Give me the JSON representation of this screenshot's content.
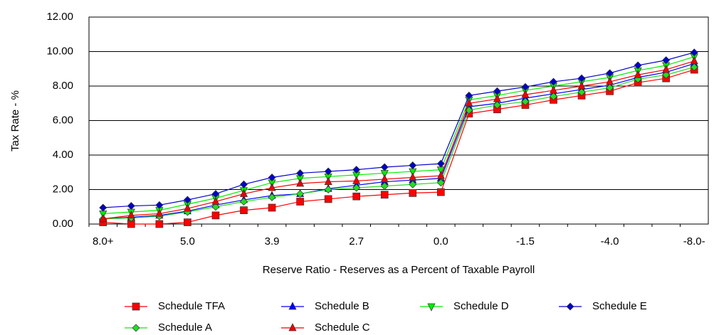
{
  "chart_data": {
    "type": "line",
    "x_label": "Reserve Ratio - Reserves as a Percent of Taxable Payroll",
    "y_label": "Tax Rate - %",
    "categories": [
      "8.0+",
      null,
      null,
      "5.0",
      null,
      null,
      "3.9",
      null,
      null,
      "2.7",
      null,
      null,
      "0.0",
      null,
      null,
      "-1.5",
      null,
      null,
      "-4.0",
      null,
      null,
      "-8.0-"
    ],
    "ylim": [
      0,
      12
    ],
    "yticks": [
      {
        "value": 0,
        "label": "0.00"
      },
      {
        "value": 2,
        "label": "2.00"
      },
      {
        "value": 4,
        "label": "4.00"
      },
      {
        "value": 6,
        "label": "6.00"
      },
      {
        "value": 8,
        "label": "8.00"
      },
      {
        "value": 10,
        "label": "10.00"
      },
      {
        "value": 12,
        "label": "12.00"
      }
    ],
    "grid": true,
    "legend": "bottom",
    "series": [
      {
        "name": "Schedule TFA",
        "color": "#ff0000",
        "marker": "square",
        "values": [
          0.1,
          0,
          0,
          0.1,
          0.5,
          0.8,
          0.95,
          1.3,
          1.45,
          1.6,
          1.7,
          1.8,
          1.85,
          6.4,
          6.65,
          6.9,
          7.2,
          7.45,
          7.7,
          8.2,
          8.45,
          8.95
        ]
      },
      {
        "name": "Schedule B",
        "color": "#0000ff",
        "marker": "triangle-up",
        "values": [
          0.3,
          0.4,
          0.5,
          0.75,
          1.1,
          1.4,
          1.65,
          1.75,
          2.05,
          2.25,
          2.45,
          2.55,
          2.65,
          6.8,
          7.0,
          7.3,
          7.55,
          7.8,
          8.05,
          8.5,
          8.8,
          9.3
        ]
      },
      {
        "name": "Schedule D",
        "color": "#00ee00",
        "marker": "triangle-down",
        "values": [
          0.6,
          0.7,
          0.8,
          1.15,
          1.5,
          1.95,
          2.4,
          2.65,
          2.75,
          2.85,
          2.95,
          3.05,
          3.15,
          7.2,
          7.45,
          7.75,
          8.0,
          8.25,
          8.5,
          8.9,
          9.2,
          9.7
        ]
      },
      {
        "name": "Schedule E",
        "color": "#0000cc",
        "marker": "diamond",
        "values": [
          0.95,
          1.05,
          1.1,
          1.4,
          1.75,
          2.3,
          2.7,
          2.95,
          3.05,
          3.15,
          3.3,
          3.4,
          3.5,
          7.45,
          7.7,
          7.95,
          8.25,
          8.45,
          8.75,
          9.2,
          9.5,
          9.95
        ]
      },
      {
        "name": "Schedule A",
        "color": "#22dd22",
        "marker": "diamond",
        "values": [
          0.3,
          0.35,
          0.45,
          0.7,
          1.0,
          1.3,
          1.55,
          1.75,
          2.0,
          2.1,
          2.2,
          2.3,
          2.4,
          6.6,
          6.9,
          7.1,
          7.4,
          7.65,
          7.9,
          8.4,
          8.65,
          9.1
        ]
      },
      {
        "name": "Schedule C",
        "color": "#ee0000",
        "marker": "triangle-up",
        "values": [
          0.3,
          0.5,
          0.6,
          0.9,
          1.3,
          1.75,
          2.1,
          2.35,
          2.45,
          2.5,
          2.6,
          2.7,
          2.8,
          7.0,
          7.25,
          7.5,
          7.75,
          8.0,
          8.25,
          8.65,
          8.95,
          9.45
        ]
      }
    ]
  }
}
